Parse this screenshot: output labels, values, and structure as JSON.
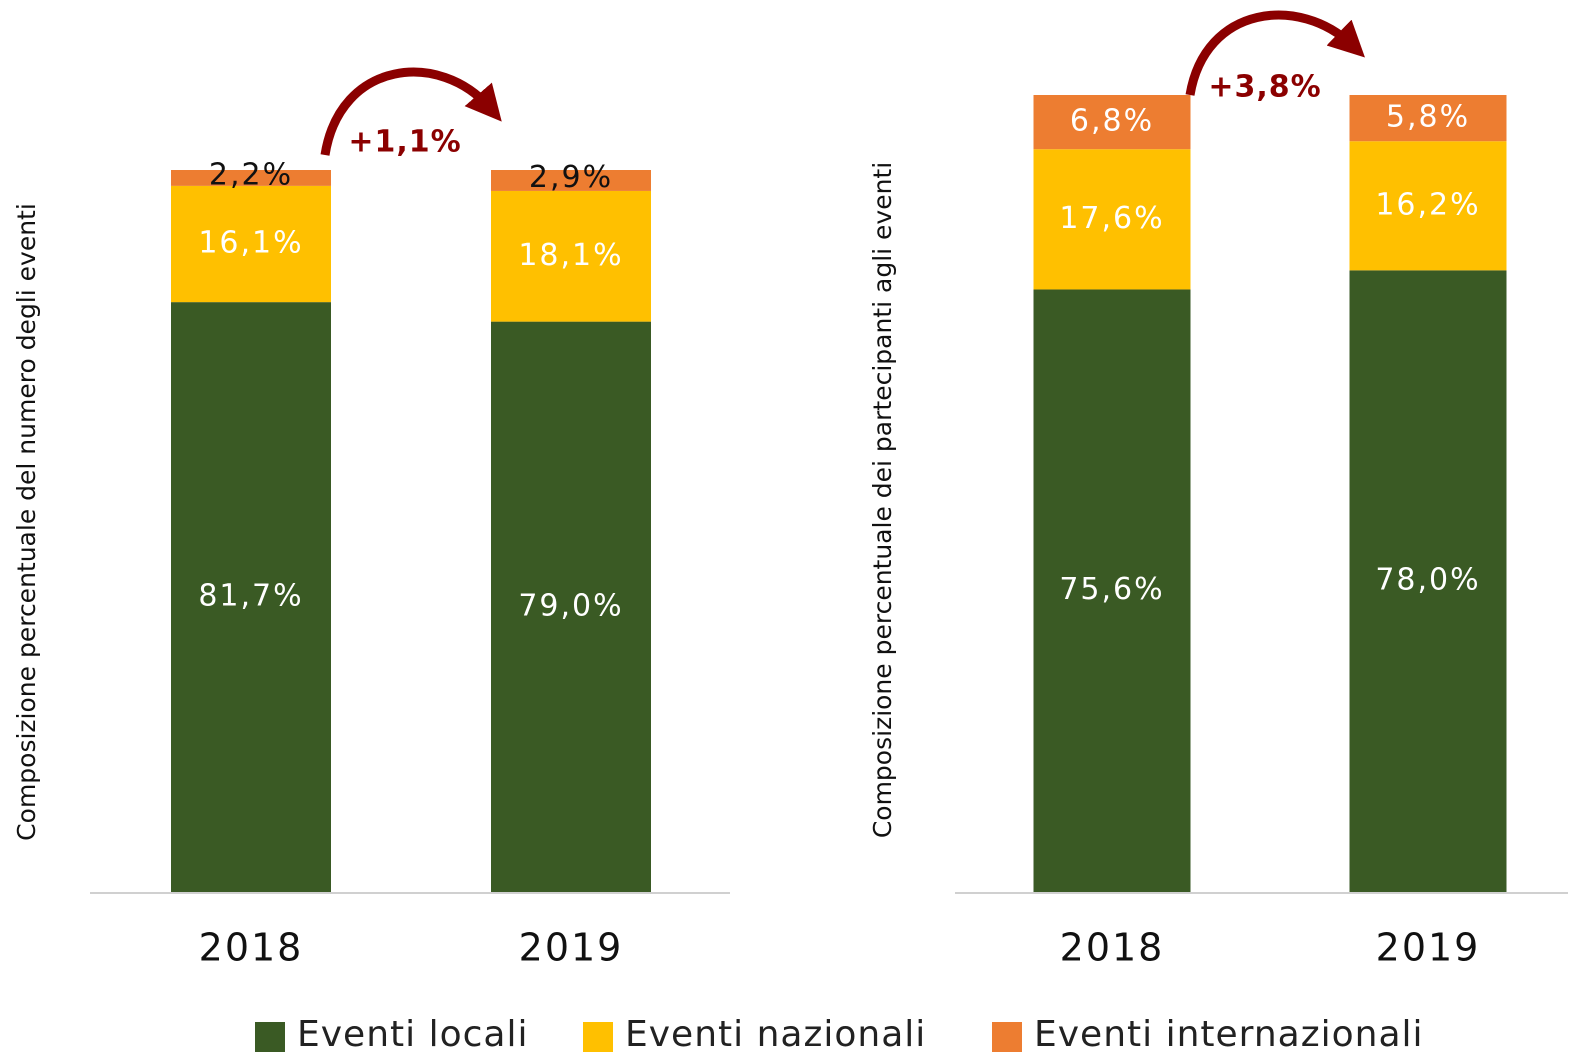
{
  "chart_data": [
    {
      "type": "stacked_bar",
      "y_label": "Composizione percentuale del numero degli eventi",
      "categories": [
        "2018",
        "2019"
      ],
      "ylim": [
        0,
        100
      ],
      "annotation": "+1,1%",
      "series": [
        {
          "name": "Eventi locali",
          "color": "#3a5a24",
          "values": [
            81.7,
            79.0
          ],
          "value_labels": [
            "81,7%",
            "79,0%"
          ]
        },
        {
          "name": "Eventi nazionali",
          "color": "#ffc000",
          "values": [
            16.1,
            18.1
          ],
          "value_labels": [
            "16,1%",
            "18,1%"
          ]
        },
        {
          "name": "Eventi internazionali",
          "color": "#ed7d31",
          "values": [
            2.2,
            2.9
          ],
          "value_labels": [
            "2,2%",
            "2,9%"
          ]
        }
      ]
    },
    {
      "type": "stacked_bar",
      "y_label": "Composizione percentuale dei partecipanti agli eventi",
      "categories": [
        "2018",
        "2019"
      ],
      "ylim": [
        0,
        100
      ],
      "annotation": "+3,8%",
      "series": [
        {
          "color": "#3a5a24",
          "values": [
            75.6,
            78.0
          ],
          "value_labels": [
            "75,6%",
            "78,0%"
          ]
        },
        {
          "color": "#ffc000",
          "values": [
            17.6,
            16.2
          ],
          "value_labels": [
            "17,6%",
            "16,2%"
          ]
        },
        {
          "color": "#ed7d31",
          "values": [
            6.8,
            5.8
          ],
          "value_labels": [
            "6,8%",
            "5,8%"
          ]
        }
      ]
    }
  ]
}
